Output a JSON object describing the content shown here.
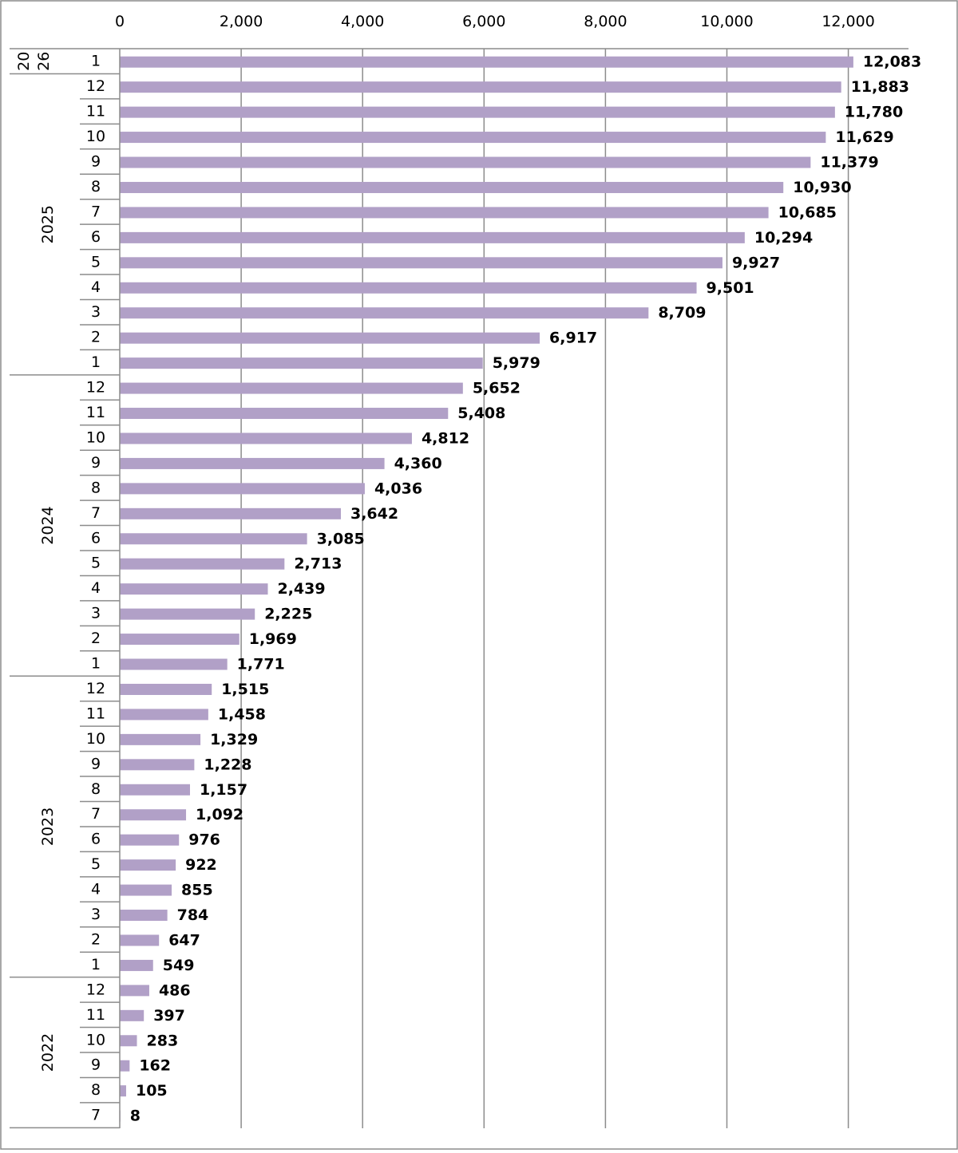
{
  "chart_data": {
    "type": "bar",
    "orientation": "horizontal",
    "title": "",
    "xlabel": "",
    "ylabel": "",
    "xlim": [
      0,
      13000
    ],
    "x_ticks": [
      0,
      2000,
      4000,
      6000,
      8000,
      10000,
      12000
    ],
    "x_tick_labels": [
      "0",
      "2,000",
      "4,000",
      "6,000",
      "8,000",
      "10,000",
      "12,000"
    ],
    "grid": true,
    "legend": "none",
    "bar_color": "#b1a0c7",
    "groups": [
      {
        "year": "2026",
        "year_display": [
          "20",
          "26"
        ],
        "months": [
          "1"
        ],
        "values": [
          12083
        ],
        "value_labels": [
          "12,083"
        ]
      },
      {
        "year": "2025",
        "months": [
          "12",
          "11",
          "10",
          "9",
          "8",
          "7",
          "6",
          "5",
          "4",
          "3",
          "2",
          "1"
        ],
        "values": [
          11883,
          11780,
          11629,
          11379,
          10930,
          10685,
          10294,
          9927,
          9501,
          8709,
          6917,
          5979
        ],
        "value_labels": [
          "11,883",
          "11,780",
          "11,629",
          "11,379",
          "10,930",
          "10,685",
          "10,294",
          "9,927",
          "9,501",
          "8,709",
          "6,917",
          "5,979"
        ]
      },
      {
        "year": "2024",
        "months": [
          "12",
          "11",
          "10",
          "9",
          "8",
          "7",
          "6",
          "5",
          "4",
          "3",
          "2",
          "1"
        ],
        "values": [
          5652,
          5408,
          4812,
          4360,
          4036,
          3642,
          3085,
          2713,
          2439,
          2225,
          1969,
          1771
        ],
        "value_labels": [
          "5,652",
          "5,408",
          "4,812",
          "4,360",
          "4,036",
          "3,642",
          "3,085",
          "2,713",
          "2,439",
          "2,225",
          "1,969",
          "1,771"
        ]
      },
      {
        "year": "2023",
        "months": [
          "12",
          "11",
          "10",
          "9",
          "8",
          "7",
          "6",
          "5",
          "4",
          "3",
          "2",
          "1"
        ],
        "values": [
          1515,
          1458,
          1329,
          1228,
          1157,
          1092,
          976,
          922,
          855,
          784,
          647,
          549
        ],
        "value_labels": [
          "1,515",
          "1,458",
          "1,329",
          "1,228",
          "1,157",
          "1,092",
          "976",
          "922",
          "855",
          "784",
          "647",
          "549"
        ]
      },
      {
        "year": "2022",
        "months": [
          "12",
          "11",
          "10",
          "9",
          "8",
          "7"
        ],
        "values": [
          486,
          397,
          283,
          162,
          105,
          8
        ],
        "value_labels": [
          "486",
          "397",
          "283",
          "162",
          "105",
          "8"
        ]
      }
    ]
  }
}
